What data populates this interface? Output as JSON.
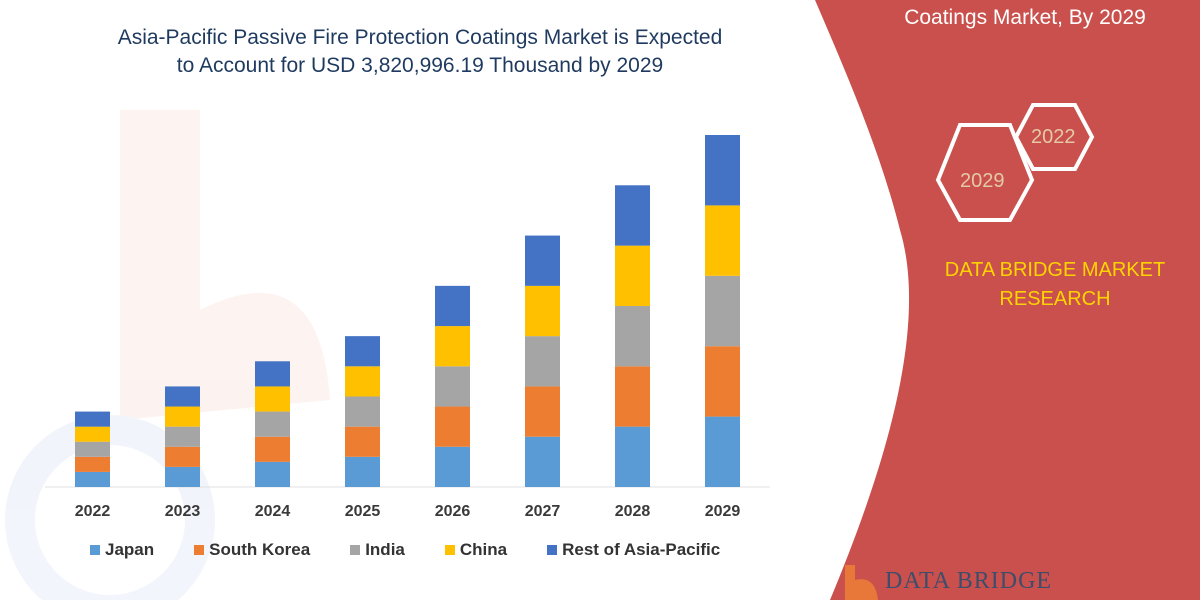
{
  "header": {
    "title_line1": "Asia-Pacific Passive Fire Protection Coatings Market is Expected",
    "title_line2": "to Account for USD 3,820,996.19 Thousand by 2029"
  },
  "side_panel": {
    "title": "Coatings Market, By 2029",
    "hex_years": [
      "2022",
      "2029"
    ],
    "brand_line1": "DATA BRIDGE MARKET",
    "brand_line2": "RESEARCH",
    "logo_text": "DATA BRIDGE",
    "panel_color": "#c9504c",
    "brand_color": "#ffd400"
  },
  "chart_data": {
    "type": "bar",
    "stacked": true,
    "title": "Asia-Pacific Passive Fire Protection Coatings Market is Expected to Account for USD 3,820,996.19 Thousand by 2029",
    "xlabel": "",
    "ylabel": "",
    "y_axis_shown": false,
    "grid": false,
    "legend_position": "bottom",
    "categories": [
      "2022",
      "2023",
      "2024",
      "2025",
      "2026",
      "2027",
      "2028",
      "2029"
    ],
    "series": [
      {
        "name": "Japan",
        "color": "#5b9bd5",
        "values": [
          15,
          20,
          25,
          30,
          40,
          50,
          60,
          70
        ]
      },
      {
        "name": "South Korea",
        "color": "#ed7d31",
        "values": [
          15,
          20,
          25,
          30,
          40,
          50,
          60,
          70
        ]
      },
      {
        "name": "India",
        "color": "#a5a5a5",
        "values": [
          15,
          20,
          25,
          30,
          40,
          50,
          60,
          70
        ]
      },
      {
        "name": "China",
        "color": "#ffc000",
        "values": [
          15,
          20,
          25,
          30,
          40,
          50,
          60,
          70
        ]
      },
      {
        "name": "Rest of Asia-Pacific",
        "color": "#4472c4",
        "values": [
          15,
          20,
          25,
          30,
          40,
          50,
          60,
          70
        ]
      }
    ]
  }
}
